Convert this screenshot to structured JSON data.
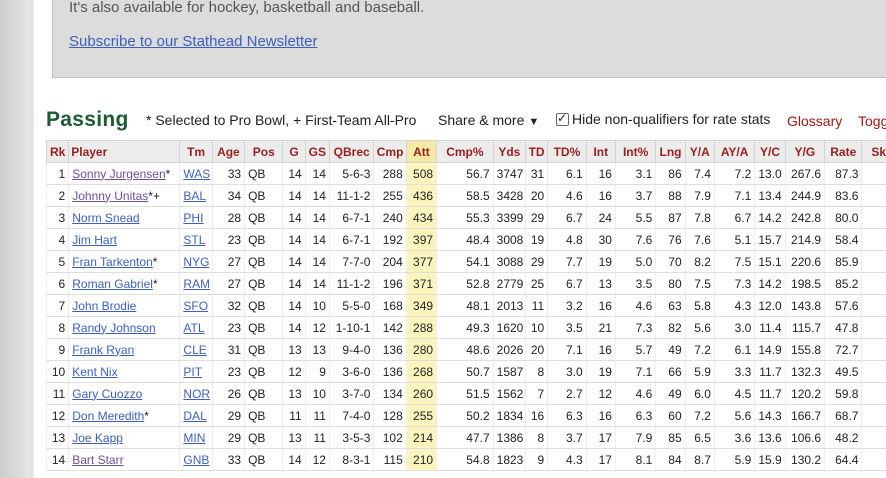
{
  "promo": {
    "text": "It's also available for hockey, basketball and baseball.",
    "link": "Subscribe to our Stathead Newsletter"
  },
  "section": {
    "title": "Passing",
    "note": "* Selected to Pro Bowl, + First-Team All-Pro",
    "share_label": "Share & more",
    "share_arrow": "▼",
    "hide_label": "Hide non-qualifiers for rate stats",
    "hide_checked": true,
    "glossary": "Glossary",
    "toggle": "Togg"
  },
  "colors": {
    "title_green": "#1d5c35",
    "header_red": "#9a1f1f",
    "link_blue": "#3d5fc1",
    "sorted_bg": "#fcf4bd"
  },
  "columns": [
    "Rk",
    "Player",
    "Tm",
    "Age",
    "Pos",
    "G",
    "GS",
    "QBrec",
    "Cmp",
    "Att",
    "Cmp%",
    "Yds",
    "TD",
    "TD%",
    "Int",
    "Int%",
    "Lng",
    "Y/A",
    "AY/A",
    "Y/C",
    "Y/G",
    "Rate",
    "Sk"
  ],
  "rows": [
    {
      "rk": "1",
      "player": "Sonny Jurgensen",
      "mark": "*",
      "tm": "WAS",
      "age": "33",
      "pos": "QB",
      "g": "14",
      "gs": "14",
      "qbrec": "5-6-3",
      "cmp": "288",
      "att": "508",
      "cmp_pct": "56.7",
      "yds": "3747",
      "td": "31",
      "td_pct": "6.1",
      "int": "16",
      "int_pct": "3.1",
      "lng": "86",
      "ya": "7.4",
      "aya": "7.2",
      "yc": "13.0",
      "yg": "267.6",
      "rate": "87.3",
      "sk": "",
      "visited": true
    },
    {
      "rk": "2",
      "player": "Johnny Unitas",
      "mark": "*+",
      "tm": "BAL",
      "age": "34",
      "pos": "QB",
      "g": "14",
      "gs": "14",
      "qbrec": "11-1-2",
      "cmp": "255",
      "att": "436",
      "cmp_pct": "58.5",
      "yds": "3428",
      "td": "20",
      "td_pct": "4.6",
      "int": "16",
      "int_pct": "3.7",
      "lng": "88",
      "ya": "7.9",
      "aya": "7.1",
      "yc": "13.4",
      "yg": "244.9",
      "rate": "83.6",
      "sk": "",
      "visited": true
    },
    {
      "rk": "3",
      "player": "Norm Snead",
      "mark": "",
      "tm": "PHI",
      "age": "28",
      "pos": "QB",
      "g": "14",
      "gs": "14",
      "qbrec": "6-7-1",
      "cmp": "240",
      "att": "434",
      "cmp_pct": "55.3",
      "yds": "3399",
      "td": "29",
      "td_pct": "6.7",
      "int": "24",
      "int_pct": "5.5",
      "lng": "87",
      "ya": "7.8",
      "aya": "6.7",
      "yc": "14.2",
      "yg": "242.8",
      "rate": "80.0",
      "sk": "",
      "visited": false
    },
    {
      "rk": "4",
      "player": "Jim Hart",
      "mark": "",
      "tm": "STL",
      "age": "23",
      "pos": "QB",
      "g": "14",
      "gs": "14",
      "qbrec": "6-7-1",
      "cmp": "192",
      "att": "397",
      "cmp_pct": "48.4",
      "yds": "3008",
      "td": "19",
      "td_pct": "4.8",
      "int": "30",
      "int_pct": "7.6",
      "lng": "76",
      "ya": "7.6",
      "aya": "5.1",
      "yc": "15.7",
      "yg": "214.9",
      "rate": "58.4",
      "sk": "",
      "visited": false
    },
    {
      "rk": "5",
      "player": "Fran Tarkenton",
      "mark": "*",
      "tm": "NYG",
      "age": "27",
      "pos": "QB",
      "g": "14",
      "gs": "14",
      "qbrec": "7-7-0",
      "cmp": "204",
      "att": "377",
      "cmp_pct": "54.1",
      "yds": "3088",
      "td": "29",
      "td_pct": "7.7",
      "int": "19",
      "int_pct": "5.0",
      "lng": "70",
      "ya": "8.2",
      "aya": "7.5",
      "yc": "15.1",
      "yg": "220.6",
      "rate": "85.9",
      "sk": "",
      "visited": false
    },
    {
      "rk": "6",
      "player": "Roman Gabriel",
      "mark": "*",
      "tm": "RAM",
      "age": "27",
      "pos": "QB",
      "g": "14",
      "gs": "14",
      "qbrec": "11-1-2",
      "cmp": "196",
      "att": "371",
      "cmp_pct": "52.8",
      "yds": "2779",
      "td": "25",
      "td_pct": "6.7",
      "int": "13",
      "int_pct": "3.5",
      "lng": "80",
      "ya": "7.5",
      "aya": "7.3",
      "yc": "14.2",
      "yg": "198.5",
      "rate": "85.2",
      "sk": "",
      "visited": false
    },
    {
      "rk": "7",
      "player": "John Brodie",
      "mark": "",
      "tm": "SFO",
      "age": "32",
      "pos": "QB",
      "g": "14",
      "gs": "10",
      "qbrec": "5-5-0",
      "cmp": "168",
      "att": "349",
      "cmp_pct": "48.1",
      "yds": "2013",
      "td": "11",
      "td_pct": "3.2",
      "int": "16",
      "int_pct": "4.6",
      "lng": "63",
      "ya": "5.8",
      "aya": "4.3",
      "yc": "12.0",
      "yg": "143.8",
      "rate": "57.6",
      "sk": "",
      "visited": false
    },
    {
      "rk": "8",
      "player": "Randy Johnson",
      "mark": "",
      "tm": "ATL",
      "age": "23",
      "pos": "QB",
      "g": "14",
      "gs": "12",
      "qbrec": "1-10-1",
      "cmp": "142",
      "att": "288",
      "cmp_pct": "49.3",
      "yds": "1620",
      "td": "10",
      "td_pct": "3.5",
      "int": "21",
      "int_pct": "7.3",
      "lng": "82",
      "ya": "5.6",
      "aya": "3.0",
      "yc": "11.4",
      "yg": "115.7",
      "rate": "47.8",
      "sk": "",
      "visited": false
    },
    {
      "rk": "9",
      "player": "Frank Ryan",
      "mark": "",
      "tm": "CLE",
      "age": "31",
      "pos": "QB",
      "g": "13",
      "gs": "13",
      "qbrec": "9-4-0",
      "cmp": "136",
      "att": "280",
      "cmp_pct": "48.6",
      "yds": "2026",
      "td": "20",
      "td_pct": "7.1",
      "int": "16",
      "int_pct": "5.7",
      "lng": "49",
      "ya": "7.2",
      "aya": "6.1",
      "yc": "14.9",
      "yg": "155.8",
      "rate": "72.7",
      "sk": "",
      "visited": false
    },
    {
      "rk": "10",
      "player": "Kent Nix",
      "mark": "",
      "tm": "PIT",
      "age": "23",
      "pos": "QB",
      "g": "12",
      "gs": "9",
      "qbrec": "3-6-0",
      "cmp": "136",
      "att": "268",
      "cmp_pct": "50.7",
      "yds": "1587",
      "td": "8",
      "td_pct": "3.0",
      "int": "19",
      "int_pct": "7.1",
      "lng": "66",
      "ya": "5.9",
      "aya": "3.3",
      "yc": "11.7",
      "yg": "132.3",
      "rate": "49.5",
      "sk": "",
      "visited": false
    },
    {
      "rk": "11",
      "player": "Gary Cuozzo",
      "mark": "",
      "tm": "NOR",
      "age": "26",
      "pos": "QB",
      "g": "13",
      "gs": "10",
      "qbrec": "3-7-0",
      "cmp": "134",
      "att": "260",
      "cmp_pct": "51.5",
      "yds": "1562",
      "td": "7",
      "td_pct": "2.7",
      "int": "12",
      "int_pct": "4.6",
      "lng": "49",
      "ya": "6.0",
      "aya": "4.5",
      "yc": "11.7",
      "yg": "120.2",
      "rate": "59.8",
      "sk": "",
      "visited": false
    },
    {
      "rk": "12",
      "player": "Don Meredith",
      "mark": "*",
      "tm": "DAL",
      "age": "29",
      "pos": "QB",
      "g": "11",
      "gs": "11",
      "qbrec": "7-4-0",
      "cmp": "128",
      "att": "255",
      "cmp_pct": "50.2",
      "yds": "1834",
      "td": "16",
      "td_pct": "6.3",
      "int": "16",
      "int_pct": "6.3",
      "lng": "60",
      "ya": "7.2",
      "aya": "5.6",
      "yc": "14.3",
      "yg": "166.7",
      "rate": "68.7",
      "sk": "",
      "visited": false
    },
    {
      "rk": "13",
      "player": "Joe Kapp",
      "mark": "",
      "tm": "MIN",
      "age": "29",
      "pos": "QB",
      "g": "13",
      "gs": "11",
      "qbrec": "3-5-3",
      "cmp": "102",
      "att": "214",
      "cmp_pct": "47.7",
      "yds": "1386",
      "td": "8",
      "td_pct": "3.7",
      "int": "17",
      "int_pct": "7.9",
      "lng": "85",
      "ya": "6.5",
      "aya": "3.6",
      "yc": "13.6",
      "yg": "106.6",
      "rate": "48.2",
      "sk": "",
      "visited": false
    },
    {
      "rk": "14",
      "player": "Bart Starr",
      "mark": "",
      "tm": "GNB",
      "age": "33",
      "pos": "QB",
      "g": "14",
      "gs": "12",
      "qbrec": "8-3-1",
      "cmp": "115",
      "att": "210",
      "cmp_pct": "54.8",
      "yds": "1823",
      "td": "9",
      "td_pct": "4.3",
      "int": "17",
      "int_pct": "8.1",
      "lng": "84",
      "ya": "8.7",
      "aya": "5.9",
      "yc": "15.9",
      "yg": "130.2",
      "rate": "64.4",
      "sk": "",
      "visited": true
    }
  ]
}
